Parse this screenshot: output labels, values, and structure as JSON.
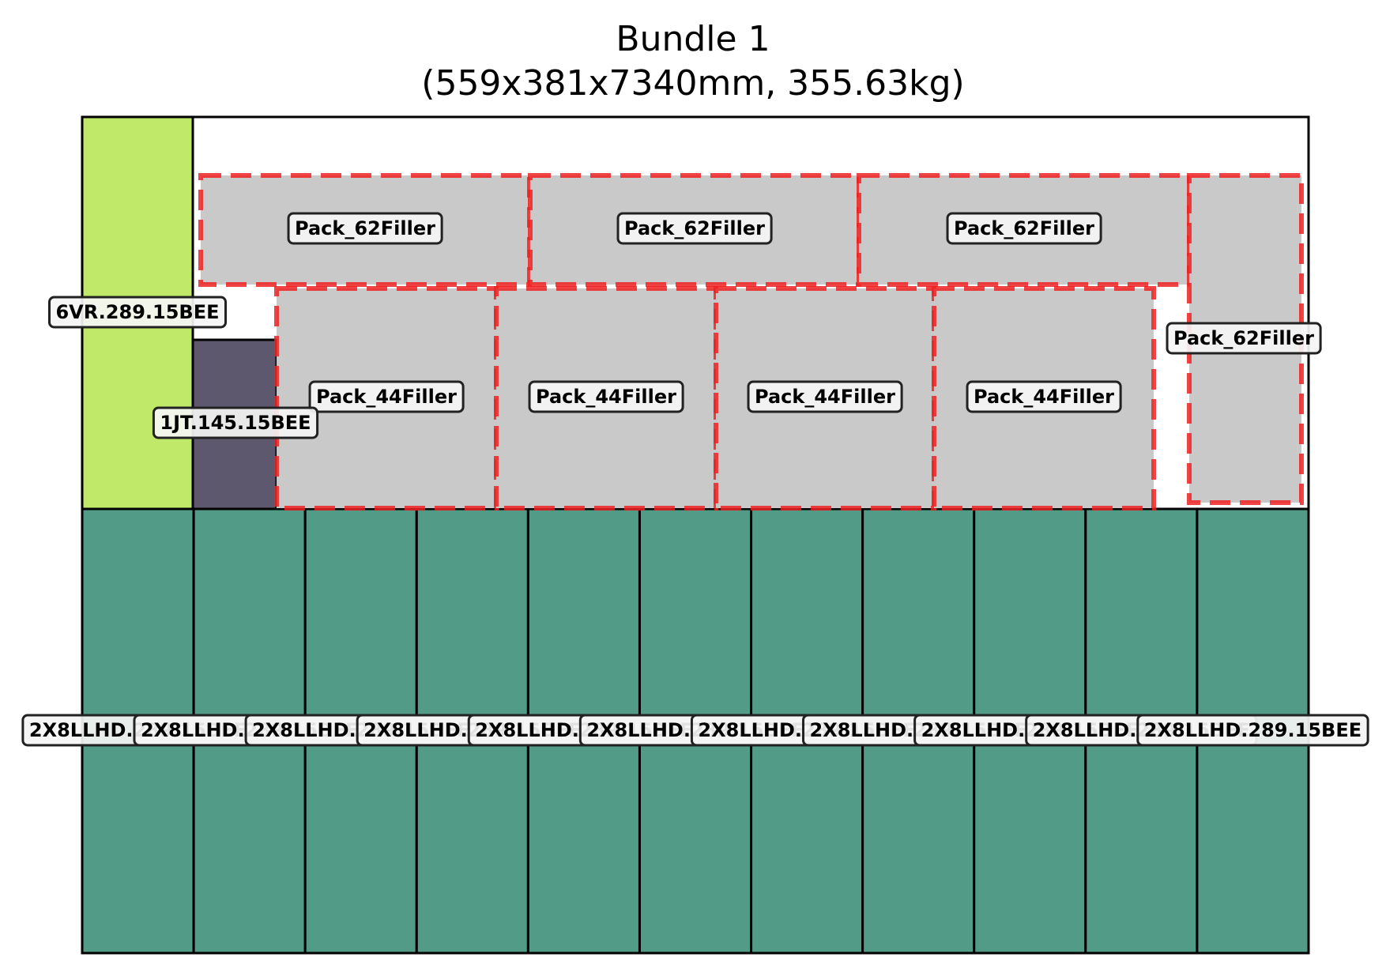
{
  "title": {
    "line1": "Bundle 1",
    "line2": "(559x381x7340mm, 355.63kg)"
  },
  "colors": {
    "lime": "#c1e969",
    "dark_slate": "#5d586d",
    "teal": "#529b86",
    "filler": "#c8c8c8",
    "filler_border": "#ee2222",
    "outline": "#000000",
    "label_bg": "#f5f5f5"
  },
  "items": [
    {
      "name": "6VR.289.15BEE",
      "label": "6VR.289.15BEE",
      "color": "lime"
    },
    {
      "name": "1JT.145.15BEE",
      "label": "1JT.145.15BEE",
      "color": "dark_slate"
    }
  ],
  "bottom_row": {
    "name": "2X8LLHD.289.15BEE",
    "count": 11,
    "label": "2X8LLHD.289.15BEE",
    "color": "teal"
  },
  "fillers": {
    "pack_62": {
      "label": "Pack_62Filler",
      "count": 4
    },
    "pack_44": {
      "label": "Pack_44Filler",
      "count": 4
    }
  }
}
